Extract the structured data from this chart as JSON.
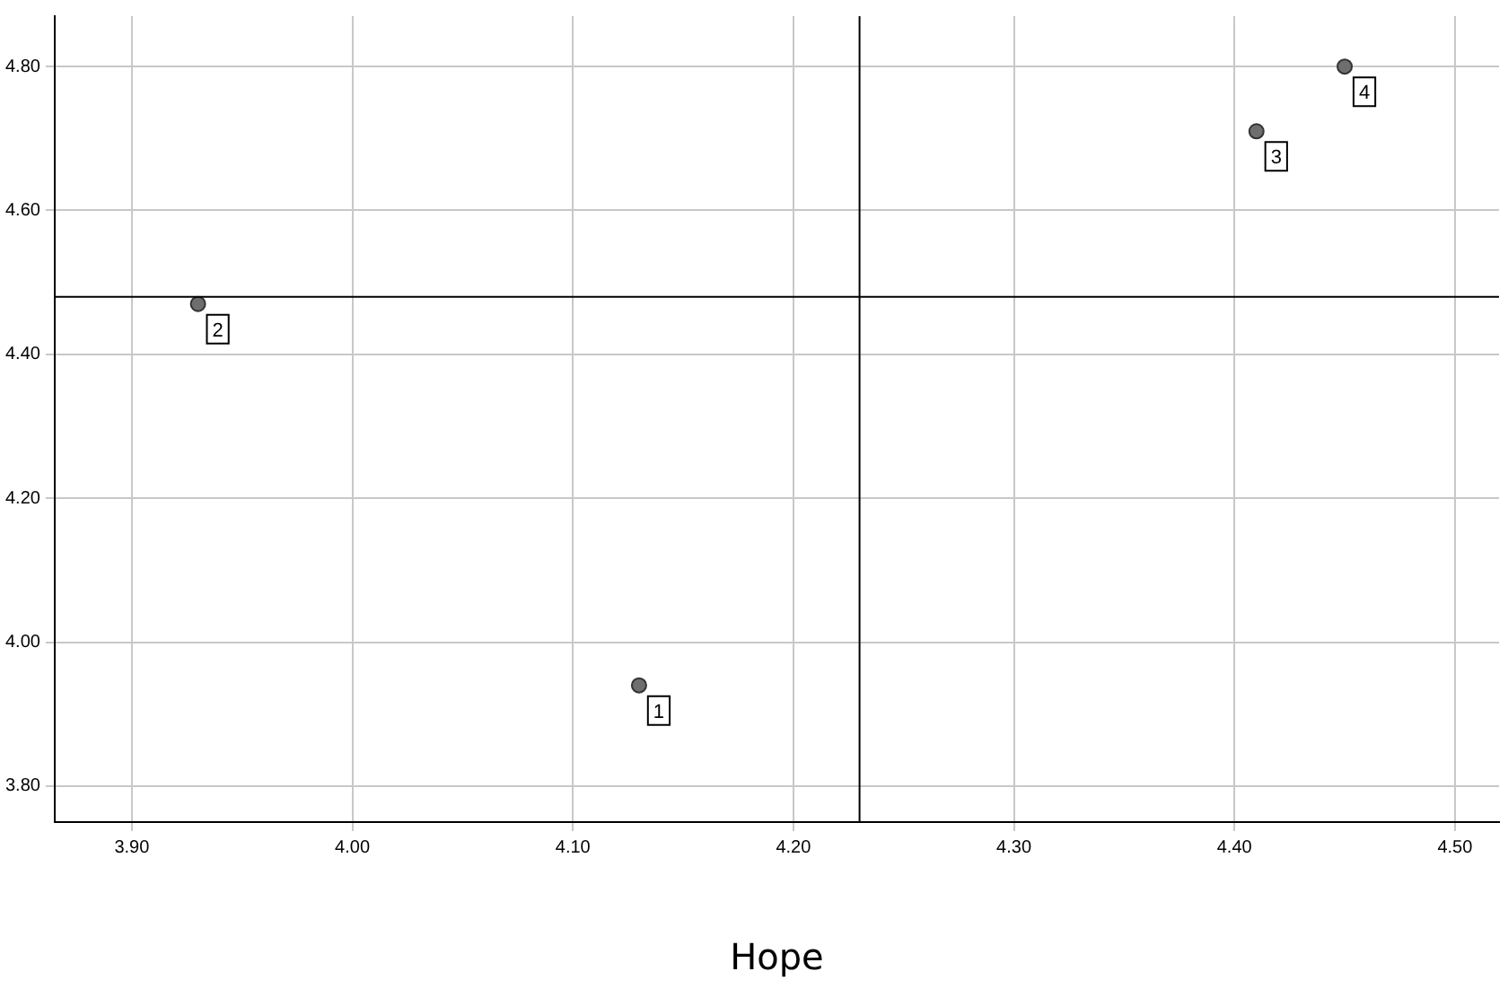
{
  "chart_data": {
    "type": "scatter",
    "xlabel": "Hope",
    "x": [
      4.13,
      3.93,
      4.41,
      4.45
    ],
    "values": [
      3.94,
      4.47,
      4.71,
      4.8
    ],
    "color": "#6e6e6e",
    "marker": "circle",
    "xlim": [
      3.865,
      4.52
    ],
    "xticks": [
      {
        "value": 3.9,
        "label": "3.90"
      },
      {
        "value": 4.0,
        "label": "4.00"
      },
      {
        "value": 4.1,
        "label": "4.10"
      },
      {
        "value": 4.2,
        "label": "4.20"
      },
      {
        "value": 4.3,
        "label": "4.30"
      },
      {
        "value": 4.4,
        "label": "4.40"
      },
      {
        "value": 4.5,
        "label": "4.50"
      }
    ],
    "ylim": [
      3.75,
      4.87
    ],
    "yticks": [
      {
        "value": 3.8,
        "label": "3.80"
      },
      {
        "value": 4.0,
        "label": "4.00"
      },
      {
        "value": 4.2,
        "label": "4.20"
      },
      {
        "value": 4.4,
        "label": "4.40"
      },
      {
        "value": 4.6,
        "label": "4.60"
      },
      {
        "value": 4.8,
        "label": "4.80"
      }
    ],
    "grid": true,
    "ref_lines": [
      {
        "axis": "x",
        "value": 4.23,
        "color": "#000000"
      },
      {
        "axis": "y",
        "value": 4.48,
        "color": "#000000"
      }
    ],
    "annotations": [
      {
        "text": "1",
        "x": 4.13,
        "y": 3.94
      },
      {
        "text": "2",
        "x": 3.93,
        "y": 4.47
      },
      {
        "text": "3",
        "x": 4.41,
        "y": 4.71
      },
      {
        "text": "4",
        "x": 4.45,
        "y": 4.8
      }
    ]
  }
}
